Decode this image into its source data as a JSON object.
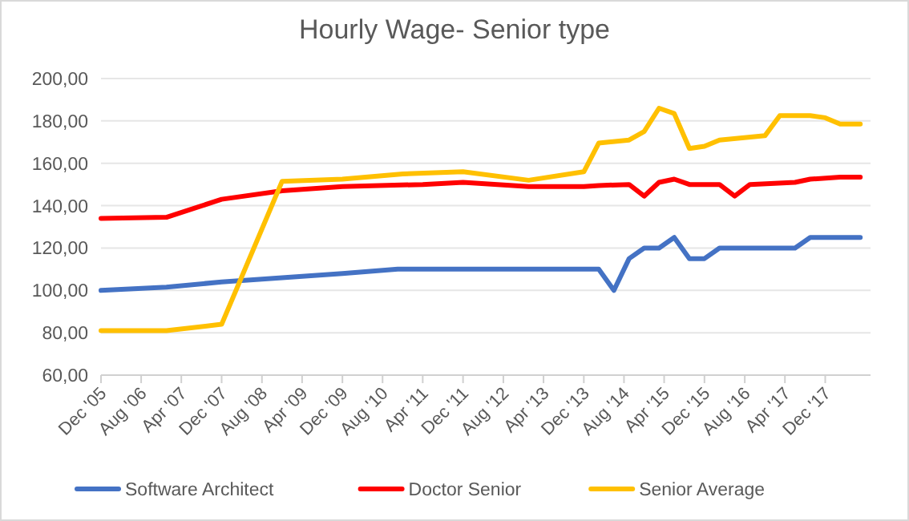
{
  "chart_data": {
    "type": "line",
    "title": "Hourly Wage- Senior type",
    "xlim": [
      "2005-12",
      "2018-09"
    ],
    "xticks": [
      {
        "value": "2005-12",
        "label": "Dec '05"
      },
      {
        "value": "2006-08",
        "label": "Aug '06"
      },
      {
        "value": "2007-04",
        "label": "Apr '07"
      },
      {
        "value": "2007-12",
        "label": "Dec '07"
      },
      {
        "value": "2008-08",
        "label": "Aug '08"
      },
      {
        "value": "2009-04",
        "label": "Apr '09"
      },
      {
        "value": "2009-12",
        "label": "Dec '09"
      },
      {
        "value": "2010-08",
        "label": "Aug '10"
      },
      {
        "value": "2011-04",
        "label": "Apr '11"
      },
      {
        "value": "2011-12",
        "label": "Dec '11"
      },
      {
        "value": "2012-08",
        "label": "Aug '12"
      },
      {
        "value": "2013-04",
        "label": "Apr '13"
      },
      {
        "value": "2013-12",
        "label": "Dec '13"
      },
      {
        "value": "2014-08",
        "label": "Aug '14"
      },
      {
        "value": "2015-04",
        "label": "Apr '15"
      },
      {
        "value": "2015-12",
        "label": "Dec '15"
      },
      {
        "value": "2016-08",
        "label": "Aug '16"
      },
      {
        "value": "2017-04",
        "label": "Apr '17"
      },
      {
        "value": "2017-12",
        "label": "Dec '17"
      }
    ],
    "ylim": [
      60,
      200
    ],
    "yticks": [
      {
        "value": 60,
        "label": "60,00"
      },
      {
        "value": 80,
        "label": "80,00"
      },
      {
        "value": 100,
        "label": "100,00"
      },
      {
        "value": 120,
        "label": "120,00"
      },
      {
        "value": 140,
        "label": "140,00"
      },
      {
        "value": 160,
        "label": "160,00"
      },
      {
        "value": 180,
        "label": "180,00"
      },
      {
        "value": 200,
        "label": "200,00"
      }
    ],
    "grid": "y",
    "legend": "bottom",
    "marker": "none",
    "line_style": "solid",
    "series": [
      {
        "name": "Software Architect",
        "color": "#4472c4",
        "x": [
          "2005-12",
          "2007-01",
          "2007-12",
          "2008-12",
          "2009-12",
          "2010-11",
          "2014-03",
          "2014-06",
          "2014-09",
          "2014-12",
          "2015-03",
          "2015-06",
          "2015-09",
          "2015-12",
          "2016-03",
          "2017-06",
          "2017-09",
          "2018-07"
        ],
        "values": [
          100,
          101.5,
          104,
          106,
          108,
          110,
          110,
          100,
          115,
          120,
          120,
          125,
          115,
          115,
          120,
          120,
          125,
          125
        ]
      },
      {
        "name": "Doctor Senior",
        "color": "#ff0000",
        "x": [
          "2005-12",
          "2007-01",
          "2007-12",
          "2008-12",
          "2009-12",
          "2011-04",
          "2011-12",
          "2013-01",
          "2013-12",
          "2014-03",
          "2014-09",
          "2014-12",
          "2015-03",
          "2015-06",
          "2015-09",
          "2016-03",
          "2016-06",
          "2016-09",
          "2017-06",
          "2017-09",
          "2018-03",
          "2018-07"
        ],
        "values": [
          134,
          134.5,
          143,
          147,
          149,
          150,
          151,
          149,
          149,
          149.5,
          150,
          144.5,
          151,
          152.5,
          150,
          150,
          144.5,
          150,
          151,
          152.5,
          153.5,
          153.5
        ]
      },
      {
        "name": "Senior Average",
        "color": "#ffc000",
        "x": [
          "2005-12",
          "2007-01",
          "2007-12",
          "2008-12",
          "2009-12",
          "2010-12",
          "2011-12",
          "2013-01",
          "2013-12",
          "2014-03",
          "2014-09",
          "2014-12",
          "2015-03",
          "2015-06",
          "2015-09",
          "2015-12",
          "2016-03",
          "2016-12",
          "2017-03",
          "2017-09",
          "2017-12",
          "2018-03",
          "2018-07"
        ],
        "values": [
          81,
          81,
          84,
          151.5,
          152.5,
          155,
          156,
          152,
          156,
          169.5,
          171,
          175,
          186,
          183.5,
          167,
          168,
          171,
          173,
          182.5,
          182.5,
          181.5,
          178.5,
          178.5
        ]
      }
    ]
  }
}
